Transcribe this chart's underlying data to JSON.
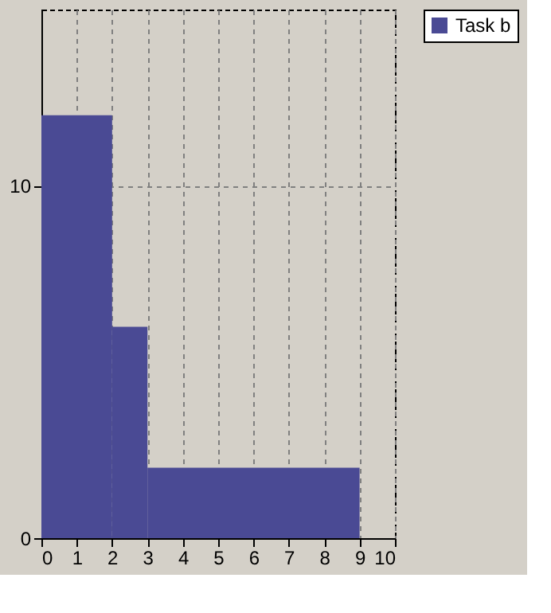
{
  "chart_data": {
    "type": "histogram",
    "bins": [
      0,
      2,
      3,
      9
    ],
    "series": [
      {
        "name": "Task b",
        "color": "#4a4a94",
        "values": [
          12,
          6,
          2
        ]
      }
    ],
    "xlim": [
      0,
      10
    ],
    "xticks": [
      0,
      1,
      2,
      3,
      4,
      5,
      6,
      7,
      8,
      9,
      10
    ],
    "ylim": [
      0,
      15
    ],
    "yticks": [
      0,
      10
    ],
    "grid": true,
    "line_style": "dashed",
    "legend": "top right"
  }
}
